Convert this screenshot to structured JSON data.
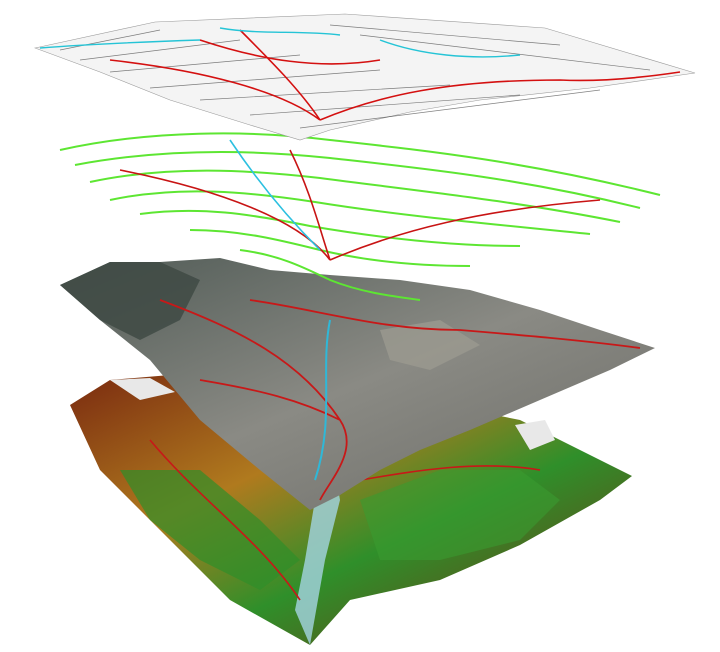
{
  "scene": {
    "background": "#ffffff",
    "layers": [
      {
        "name": "topographic-line-map",
        "style": "black-linework",
        "colors": {
          "lines": "#1a1a1a",
          "roads": "#d41010",
          "water": "#25c4d6"
        }
      },
      {
        "name": "contour-lines",
        "style": "contours",
        "colors": {
          "contours": "#5de632",
          "roads": "#c81414",
          "water": "#2cc0e0"
        }
      },
      {
        "name": "orthophoto-terrain",
        "style": "aerial-imagery",
        "colors": {
          "base": "#6b6b66",
          "roads": "#c81818",
          "water": "#2fb8d8"
        }
      },
      {
        "name": "elevation-model",
        "style": "hypsometric-tint",
        "colors": {
          "low": "#2f8f2a",
          "mid": "#b07a1e",
          "high": "#7a2a10",
          "peaks": "#e8e8e8",
          "valley": "#9fd0d8"
        }
      }
    ]
  }
}
